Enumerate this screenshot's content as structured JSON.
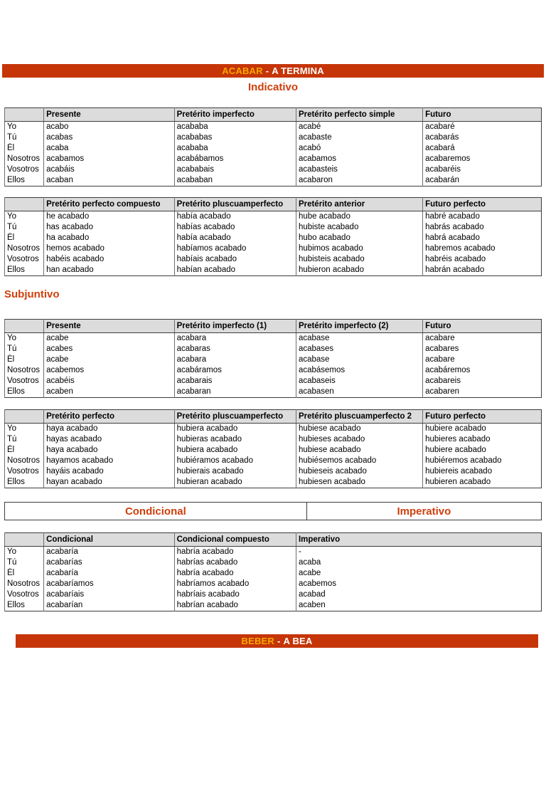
{
  "colors": {
    "bar_bg": "#c53508",
    "verb_accent": "#f5a800",
    "on_bar": "#ffffff",
    "heading": "#ce3f0c",
    "th_bg": "#dcdcdc"
  },
  "verb_header": {
    "verb": "ACABAR",
    "separator": "-",
    "translation": "A TERMINA"
  },
  "next_verb_header": {
    "verb": "BEBER",
    "separator": "-",
    "translation": "A BEA"
  },
  "sections": {
    "indicativo": "Indicativo",
    "subjuntivo": "Subjuntivo",
    "condicional": "Condicional",
    "imperativo": "Imperativo"
  },
  "pronouns": [
    "Yo",
    "Tú",
    "Él",
    "Nosotros",
    "Vosotros",
    "Ellos"
  ],
  "tables": [
    {
      "id": "indicativo-simple",
      "headers": [
        "Presente",
        "Pretérito imperfecto",
        "Pretérito perfecto simple",
        "Futuro"
      ],
      "columns": [
        [
          "acabo",
          "acabas",
          "acaba",
          "acabamos",
          "acabáis",
          "acaban"
        ],
        [
          "acababa",
          "acababas",
          "acababa",
          "acabábamos",
          "acababais",
          "acababan"
        ],
        [
          "acabé",
          "acabaste",
          "acabó",
          "acabamos",
          "acabasteis",
          "acabaron"
        ],
        [
          "acabaré",
          "acabarás",
          "acabará",
          "acabaremos",
          "acabaréis",
          "acabarán"
        ]
      ]
    },
    {
      "id": "indicativo-compuesto",
      "headers": [
        "Pretérito perfecto compuesto",
        "Pretérito pluscuamperfecto",
        "Pretérito anterior",
        "Futuro perfecto"
      ],
      "columns": [
        [
          "he acabado",
          "has acabado",
          "ha acabado",
          "hemos acabado",
          "habéis acabado",
          "han acabado"
        ],
        [
          "había acabado",
          "habías acabado",
          "había acabado",
          "habíamos acabado",
          "habíais acabado",
          "habían acabado"
        ],
        [
          "hube acabado",
          "hubiste acabado",
          "hubo acabado",
          "hubimos acabado",
          "hubisteis acabado",
          "hubieron acabado"
        ],
        [
          "habré acabado",
          "habrás acabado",
          "habrá acabado",
          "habremos acabado",
          "habréis acabado",
          "habrán acabado"
        ]
      ]
    },
    {
      "id": "subjuntivo-simple",
      "headers": [
        "Presente",
        "Pretérito imperfecto (1)",
        "Pretérito imperfecto (2)",
        "Futuro"
      ],
      "columns": [
        [
          "acabe",
          "acabes",
          "acabe",
          "acabemos",
          "acabéis",
          "acaben"
        ],
        [
          "acabara",
          "acabaras",
          "acabara",
          "acabáramos",
          "acabarais",
          "acabaran"
        ],
        [
          "acabase",
          "acabases",
          "acabase",
          "acabásemos",
          "acabaseis",
          "acabasen"
        ],
        [
          "acabare",
          "acabares",
          "acabare",
          "acabáremos",
          "acabareis",
          "acabaren"
        ]
      ]
    },
    {
      "id": "subjuntivo-compuesto",
      "headers": [
        "Pretérito perfecto",
        "Pretérito pluscuamperfecto",
        "Pretérito pluscuamperfecto 2",
        "Futuro perfecto"
      ],
      "columns": [
        [
          "haya acabado",
          "hayas acabado",
          "haya acabado",
          "hayamos acabado",
          "hayáis acabado",
          "hayan acabado"
        ],
        [
          "hubiera acabado",
          "hubieras acabado",
          "hubiera acabado",
          "hubiéramos acabado",
          "hubierais acabado",
          "hubieran acabado"
        ],
        [
          "hubiese acabado",
          "hubieses acabado",
          "hubiese acabado",
          "hubiésemos acabado",
          "hubieseis acabado",
          "hubiesen acabado"
        ],
        [
          "hubiere acabado",
          "hubieres acabado",
          "hubiere acabado",
          "hubiéremos acabado",
          "hubiereis acabado",
          "hubieren acabado"
        ]
      ]
    },
    {
      "id": "condicional-imperativo",
      "headers": [
        "Condicional",
        "Condicional compuesto",
        "Imperativo"
      ],
      "columns": [
        [
          "acabaría",
          "acabarías",
          "acabaría",
          "acabaríamos",
          "acabaríais",
          "acabarían"
        ],
        [
          "habría acabado",
          "habrías acabado",
          "habría acabado",
          "habríamos acabado",
          "habríais acabado",
          "habrían acabado"
        ],
        [
          "-",
          "acaba",
          "acabe",
          "acabemos",
          "acabad",
          "acaben"
        ]
      ]
    }
  ]
}
